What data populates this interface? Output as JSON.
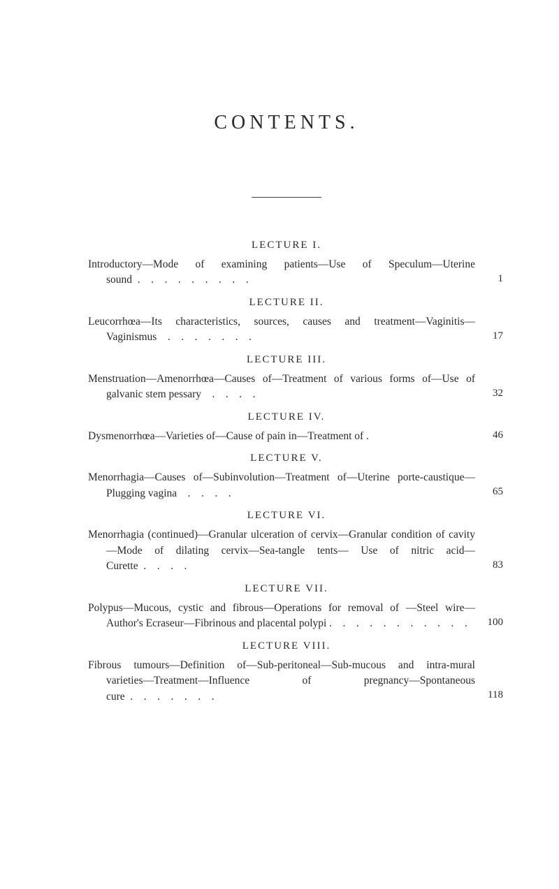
{
  "page": {
    "title": "CONTENTS.",
    "background_color": "#ffffff",
    "text_color": "#2a2a2a",
    "font_family": "Georgia, serif",
    "title_fontsize": 28,
    "heading_fontsize": 15,
    "body_fontsize": 15.5
  },
  "lectures": [
    {
      "heading": "LECTURE I.",
      "entry": "Introductory—Mode of examining patients—Use of Speculum—Uterine sound  .    .    .    .    .    .    .    .    .",
      "page": "1"
    },
    {
      "heading": "LECTURE II.",
      "entry": "Leucorrhœa—Its characteristics, sources, causes and treatment—Vaginitis—Vaginismus    .    .    .    .    .    .    .",
      "page": "17"
    },
    {
      "heading": "LECTURE III.",
      "entry": "Menstruation—Amenorrhœa—Causes of—Treatment of various forms of—Use of galvanic stem pessary    .    .    .    .",
      "page": "32"
    },
    {
      "heading": "LECTURE IV.",
      "entry": "Dysmenorrhœa—Varieties of—Cause of pain in—Treatment of .",
      "page": "46"
    },
    {
      "heading": "LECTURE V.",
      "entry": "Menorrhagia—Causes of—Subinvolution—Treatment of—Uterine porte-caustique—Plugging vagina    .    .    .    .",
      "page": "65"
    },
    {
      "heading": "LECTURE VI.",
      "entry": "Menorrhagia (continued)—Granular ulceration of cervix—Granular condition of cavity—Mode of dilating cervix—Sea-tangle tents— Use of nitric acid—Curette  .    .    .    .",
      "page": "83"
    },
    {
      "heading": "LECTURE VII.",
      "entry": "Polypus—Mucous, cystic and fibrous—Operations for removal of —Steel wire—Author's Ecraseur—Fibrinous and placental polypi .    .    .    .    .    .    .    .    .    .    .",
      "page": "100"
    },
    {
      "heading": "LECTURE VIII.",
      "entry": "Fibrous tumours—Definition of—Sub-peritoneal—Sub-mucous and intra-mural varieties—Treatment—Influence of pregnancy—Spontaneous cure  .    .    .    .    .    .    .",
      "page": "118"
    }
  ]
}
